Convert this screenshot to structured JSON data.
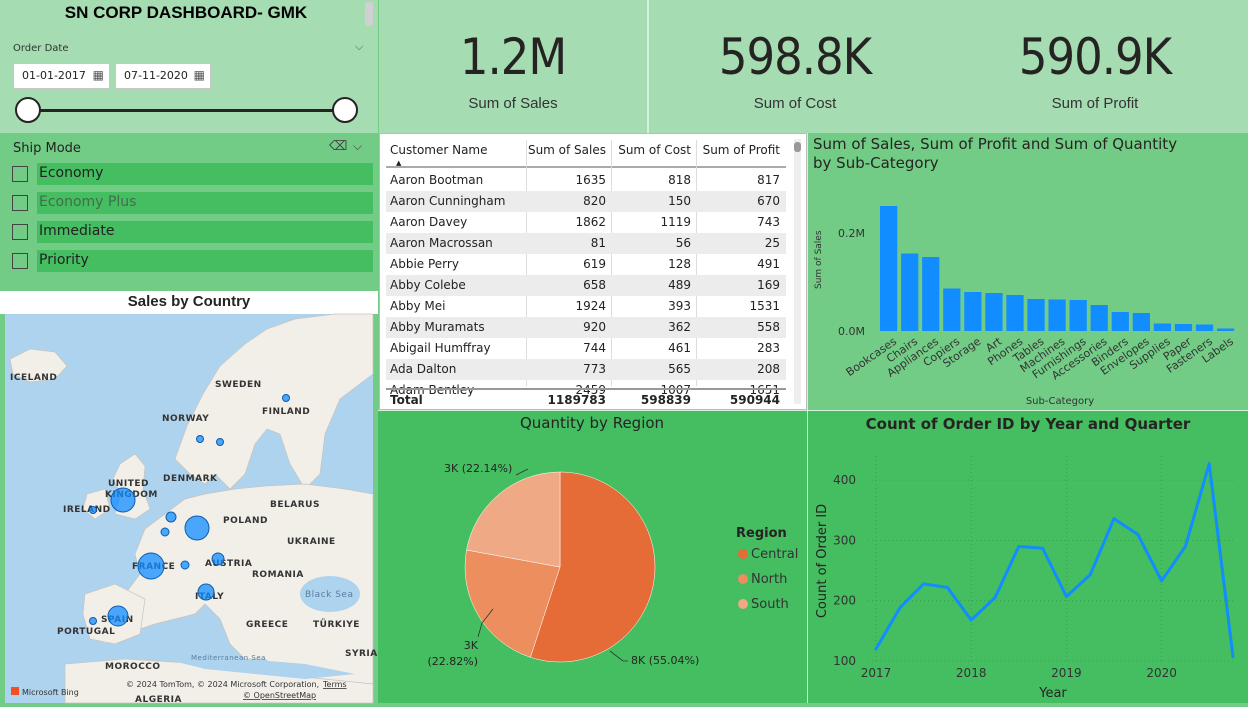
{
  "header": {
    "title": "SN CORP DASHBOARD- GMK",
    "order_date_label": "Order Date",
    "start_date": "01-01-2017",
    "end_date": "07-11-2020"
  },
  "kpis": [
    {
      "value": "1.2M",
      "label": "Sum of Sales"
    },
    {
      "value": "598.8K",
      "label": "Sum of Cost"
    },
    {
      "value": "590.9K",
      "label": "Sum of Profit"
    }
  ],
  "ship_mode": {
    "title": "Ship Mode",
    "options": [
      "Economy",
      "Economy Plus",
      "Immediate",
      "Priority"
    ]
  },
  "map": {
    "title": "Sales by Country",
    "labels": [
      "ICELAND",
      "SWEDEN",
      "FINLAND",
      "NORWAY",
      "UNITED",
      "KINGDOM",
      "DENMARK",
      "IRELAND",
      "BELARUS",
      "POLAND",
      "UKRAINE",
      "FRANCE",
      "AUSTRIA",
      "ROMANIA",
      "ITALY",
      "Black Sea",
      "SPAIN",
      "PORTUGAL",
      "GREECE",
      "TÜRKIYE",
      "SYRIA",
      "Mediterranean Sea",
      "MOROCCO",
      "ALGERIA"
    ],
    "attribution": "© 2024 TomTom, © 2024 Microsoft Corporation,",
    "terms": "Terms",
    "osm": "© OpenStreetMap",
    "bing": "Microsoft Bing"
  },
  "table": {
    "columns": [
      "Customer Name",
      "Sum of Sales",
      "Sum of Cost",
      "Sum of Profit"
    ],
    "rows": [
      [
        "Aaron Bootman",
        "1635",
        "818",
        "817"
      ],
      [
        "Aaron Cunningham",
        "820",
        "150",
        "670"
      ],
      [
        "Aaron Davey",
        "1862",
        "1119",
        "743"
      ],
      [
        "Aaron Macrossan",
        "81",
        "56",
        "25"
      ],
      [
        "Abbie Perry",
        "619",
        "128",
        "491"
      ],
      [
        "Abby Colebe",
        "658",
        "489",
        "169"
      ],
      [
        "Abby Mei",
        "1924",
        "393",
        "1531"
      ],
      [
        "Abby Muramats",
        "920",
        "362",
        "558"
      ],
      [
        "Abigail Humffray",
        "744",
        "461",
        "283"
      ],
      [
        "Ada Dalton",
        "773",
        "565",
        "208"
      ],
      [
        "Adam Bentley",
        "2459",
        "1007",
        "1651"
      ]
    ],
    "total": [
      "Total",
      "1189783",
      "598839",
      "590944"
    ]
  },
  "chart_data": [
    {
      "type": "bar",
      "title": "Sum of Sales, Sum of Profit and Sum of Quantity by Sub-Category",
      "xlabel": "Sub-Category",
      "ylabel": "Sum of Sales",
      "categories": [
        "Bookcases",
        "Chairs",
        "Appliances",
        "Copiers",
        "Storage",
        "Art",
        "Phones",
        "Tables",
        "Machines",
        "Furnishings",
        "Accessories",
        "Binders",
        "Envelopes",
        "Supplies",
        "Paper",
        "Fasteners",
        "Labels"
      ],
      "values": [
        250000,
        155000,
        148000,
        85000,
        78000,
        76000,
        72000,
        64000,
        63000,
        62000,
        52000,
        38000,
        36000,
        15000,
        14000,
        13000,
        5000
      ],
      "yticks": [
        "0.2M",
        "0.0M"
      ],
      "ylim": [
        0,
        280000
      ],
      "color": "#118dff"
    },
    {
      "type": "pie",
      "title": "Quantity by Region",
      "legend_title": "Region",
      "legend_position": "right",
      "slices": [
        {
          "name": "Central",
          "value": 55.04,
          "label": "8K (55.04%)",
          "color": "#e66c37"
        },
        {
          "name": "North",
          "value": 22.82,
          "label": "3K",
          "label2": "(22.82%)",
          "color": "#ec8e5e"
        },
        {
          "name": "South",
          "value": 22.14,
          "label": "3K (22.14%)",
          "color": "#efa985"
        }
      ]
    },
    {
      "type": "line",
      "title": "Count of Order ID by Year and Quarter",
      "xlabel": "Year",
      "ylabel": "Count of Order ID",
      "x": [
        "2017 Q1",
        "2017 Q2",
        "2017 Q3",
        "2017 Q4",
        "2018 Q1",
        "2018 Q2",
        "2018 Q3",
        "2018 Q4",
        "2019 Q1",
        "2019 Q2",
        "2019 Q3",
        "2019 Q4",
        "2020 Q1",
        "2020 Q2",
        "2020 Q3",
        "2020 Q4"
      ],
      "values": [
        120,
        188,
        228,
        222,
        168,
        205,
        290,
        287,
        207,
        243,
        336,
        310,
        233,
        290,
        427,
        107
      ],
      "yticks": [
        100,
        200,
        300,
        400
      ],
      "ylim": [
        100,
        440
      ],
      "xticks": [
        "2017",
        "2018",
        "2019",
        "2020"
      ],
      "color": "#118dff"
    }
  ]
}
